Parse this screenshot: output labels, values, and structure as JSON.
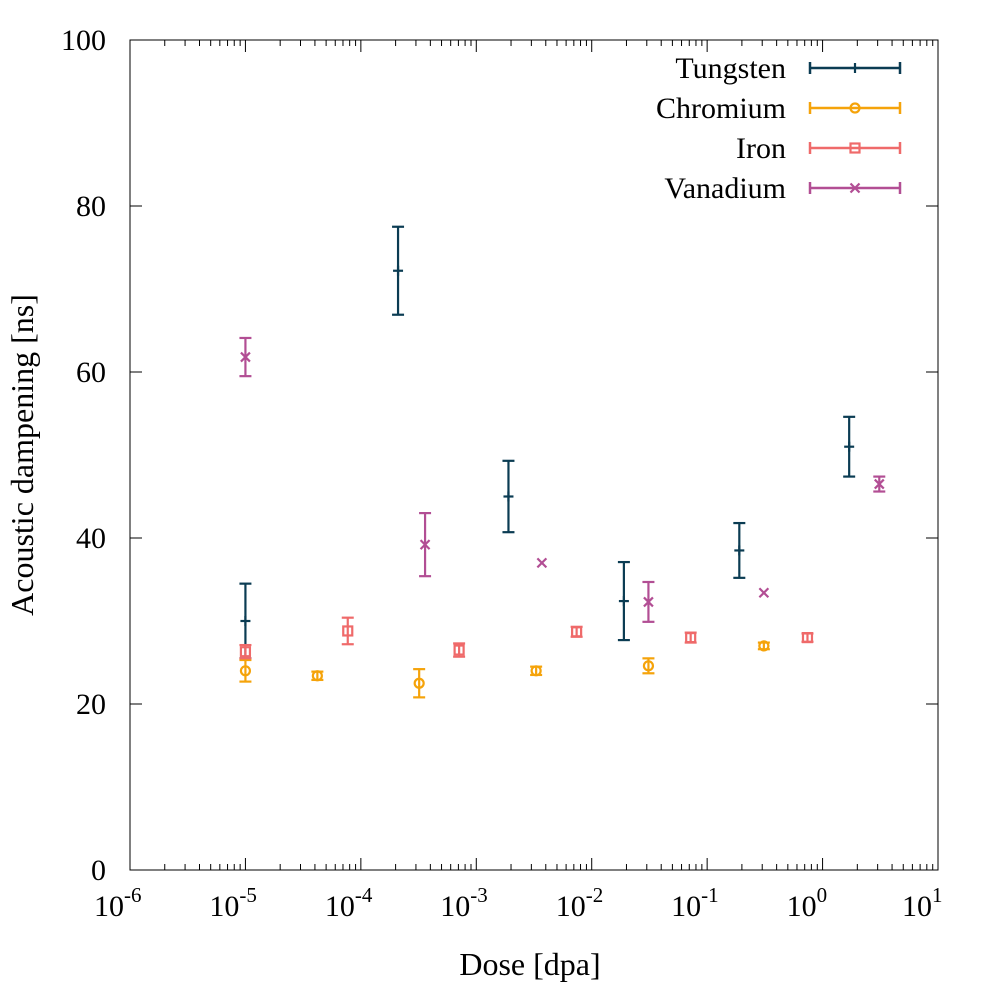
{
  "chart_data": {
    "type": "scatter",
    "title": "",
    "xlabel": "Dose [dpa]",
    "ylabel": "Acoustic dampening [ns]",
    "xscale": "log",
    "xlim": [
      1e-06,
      10
    ],
    "ylim": [
      0,
      100
    ],
    "x_ticks": [
      {
        "base": "10",
        "exp": "-6",
        "value": 1e-06
      },
      {
        "base": "10",
        "exp": "-5",
        "value": 1e-05
      },
      {
        "base": "10",
        "exp": "-4",
        "value": 0.0001
      },
      {
        "base": "10",
        "exp": "-3",
        "value": 0.001
      },
      {
        "base": "10",
        "exp": "-2",
        "value": 0.01
      },
      {
        "base": "10",
        "exp": "-1",
        "value": 0.1
      },
      {
        "base": "10",
        "exp": "0",
        "value": 1
      },
      {
        "base": "10",
        "exp": "1",
        "value": 10
      }
    ],
    "y_ticks": [
      "0",
      "20",
      "40",
      "60",
      "80",
      "100"
    ],
    "grid": false,
    "legend_position": "top-right",
    "series": [
      {
        "name": "Tungsten",
        "color": "#0b3c53",
        "marker": "plus",
        "points": [
          {
            "x": 1e-05,
            "y": 30.0,
            "err": 4.5
          },
          {
            "x": 0.00021,
            "y": 72.2,
            "err": 5.3
          },
          {
            "x": 0.0019,
            "y": 45.0,
            "err": 4.3
          },
          {
            "x": 0.019,
            "y": 32.4,
            "err": 4.7
          },
          {
            "x": 0.19,
            "y": 38.5,
            "err": 3.3
          },
          {
            "x": 1.7,
            "y": 51.0,
            "err": 3.6
          }
        ]
      },
      {
        "name": "Chromium",
        "color": "#f5a30a",
        "marker": "circle",
        "points": [
          {
            "x": 1e-05,
            "y": 24.0,
            "err": 1.3
          },
          {
            "x": 4.2e-05,
            "y": 23.4,
            "err": 0.5
          },
          {
            "x": 0.00032,
            "y": 22.5,
            "err": 1.7
          },
          {
            "x": 0.0033,
            "y": 24.0,
            "err": 0.5
          },
          {
            "x": 0.031,
            "y": 24.6,
            "err": 0.9
          },
          {
            "x": 0.31,
            "y": 27.0,
            "err": 0.4
          }
        ]
      },
      {
        "name": "Iron",
        "color": "#ef6a6a",
        "marker": "square",
        "points": [
          {
            "x": 1e-05,
            "y": 26.3,
            "err": 0.8
          },
          {
            "x": 7.7e-05,
            "y": 28.8,
            "err": 1.6
          },
          {
            "x": 0.00071,
            "y": 26.5,
            "err": 0.8
          },
          {
            "x": 0.0074,
            "y": 28.7,
            "err": 0.6
          },
          {
            "x": 0.072,
            "y": 28.0,
            "err": 0.6
          },
          {
            "x": 0.74,
            "y": 28.0,
            "err": 0.5
          }
        ]
      },
      {
        "name": "Vanadium",
        "color": "#b24e94",
        "marker": "x",
        "points": [
          {
            "x": 1e-05,
            "y": 61.8,
            "err": 2.3
          },
          {
            "x": 0.00036,
            "y": 39.2,
            "err": 3.8
          },
          {
            "x": 0.0037,
            "y": 37.0,
            "err": 0.0
          },
          {
            "x": 0.031,
            "y": 32.3,
            "err": 2.4
          },
          {
            "x": 0.31,
            "y": 33.4,
            "err": 0.0
          },
          {
            "x": 3.1,
            "y": 46.5,
            "err": 0.9
          }
        ]
      }
    ]
  }
}
